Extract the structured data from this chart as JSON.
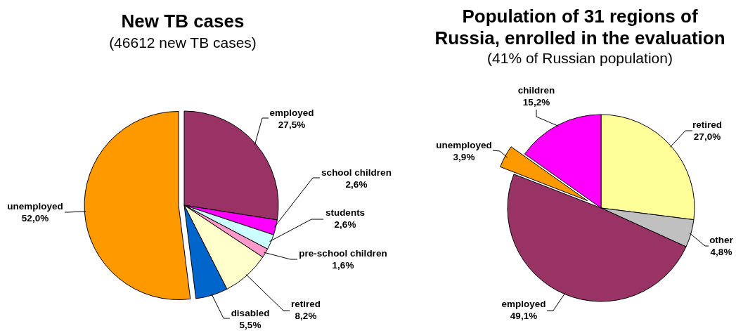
{
  "chart_data": [
    {
      "type": "pie",
      "title": "New TB cases",
      "subtitle": "(46612 new TB cases)",
      "categories": [
        "employed",
        "school children",
        "students",
        "pre-school children",
        "retired",
        "disabled",
        "unemployed"
      ],
      "values": [
        27.5,
        2.6,
        2.6,
        1.6,
        8.2,
        5.5,
        52.0
      ],
      "colors": [
        "#993366",
        "#ff00ff",
        "#ccffff",
        "#ff99cc",
        "#ffffcc",
        "#0066cc",
        "#ff9900"
      ],
      "value_labels": [
        "27,5%",
        "2,6%",
        "2,6%",
        "1,6%",
        "8,2%",
        "5,5%",
        "52,0%"
      ]
    },
    {
      "type": "pie",
      "title": "Population of 31 regions of Russia, enrolled in the evaluation",
      "subtitle": "(41% of Russian population)",
      "categories": [
        "retired",
        "other",
        "employed",
        "unemployed",
        "children"
      ],
      "values": [
        27.0,
        4.8,
        49.1,
        3.9,
        15.2
      ],
      "colors": [
        "#ffff99",
        "#c0c0c0",
        "#993366",
        "#ff9900",
        "#ff00ff"
      ],
      "value_labels": [
        "27,0%",
        "4,8%",
        "49,1%",
        "3,9%",
        "15,2%"
      ]
    }
  ]
}
